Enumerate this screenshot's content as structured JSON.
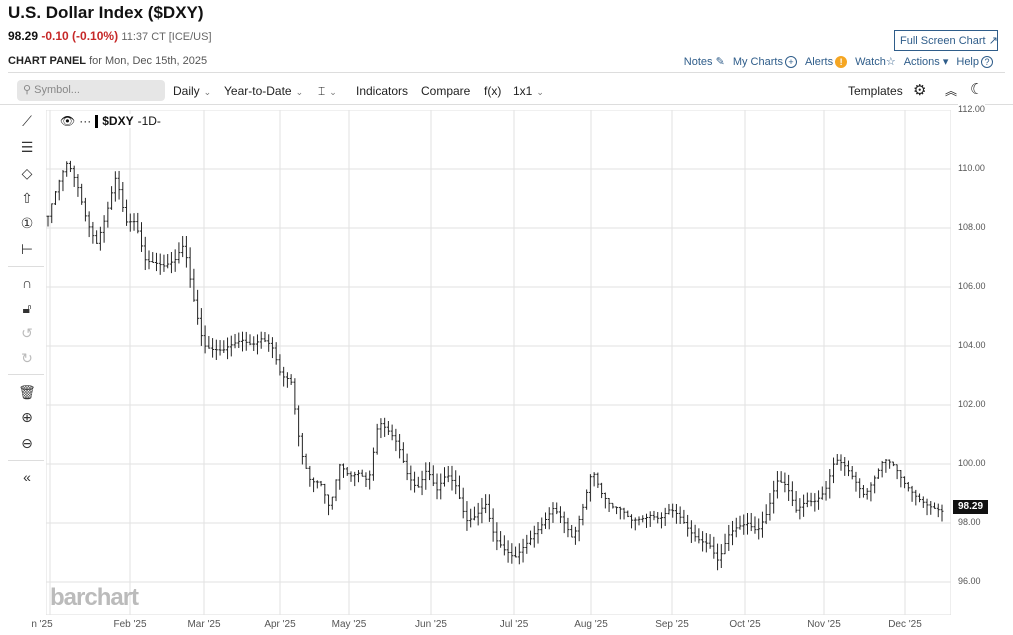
{
  "header": {
    "title": "U.S. Dollar Index ($DXY)",
    "last": "98.29",
    "change": "-0.10 (-0.10%)",
    "time": "11:37 CT [ICE/US]",
    "panel_label": "CHART PANEL",
    "panel_date": "for Mon, Dec 15th, 2025",
    "fullscreen": "Full Screen Chart ↗"
  },
  "links": {
    "notes": "Notes",
    "mycharts": "My Charts",
    "alerts": "Alerts",
    "watch": "Watch",
    "actions": "Actions",
    "help": "Help"
  },
  "toolbar": {
    "symbol_placeholder": "Symbol...",
    "interval": "Daily",
    "range": "Year-to-Date",
    "bartype": "⌶",
    "indicators": "Indicators",
    "compare": "Compare",
    "fx": "f(x)",
    "layout": "1x1",
    "templates": "Templates"
  },
  "legend": {
    "symbol": "$DXY",
    "period": "-1D-"
  },
  "watermark": "barchart",
  "chart_data": {
    "type": "ohlc",
    "symbol": "$DXY",
    "ylim": [
      95.5,
      112
    ],
    "yticks": [
      "112.00",
      "110.00",
      "108.00",
      "106.00",
      "104.00",
      "102.00",
      "100.00",
      "98.00",
      "96.00"
    ],
    "xticks": [
      "n '25",
      "Feb '25",
      "Mar '25",
      "Apr '25",
      "May '25",
      "Jun '25",
      "Jul '25",
      "Aug '25",
      "Sep '25",
      "Oct '25",
      "Nov '25",
      "Dec '25"
    ],
    "last_price": "98.29",
    "closes": [
      108.4,
      109.3,
      110.1,
      109.5,
      108.4,
      107.6,
      108.4,
      109.6,
      108.1,
      108.3,
      107.1,
      106.9,
      106.6,
      106.7,
      107.4,
      105.7,
      104.2,
      103.9,
      103.7,
      103.9,
      104.2,
      104.2,
      104.4,
      104.0,
      102.8,
      102.7,
      100.5,
      99.6,
      99.5,
      98.4,
      99.8,
      99.5,
      99.8,
      99.6,
      101.5,
      101.0,
      100.5,
      99.6,
      99.3,
      100.0,
      99.1,
      99.5,
      99.1,
      98.1,
      98.4,
      98.8,
      97.4,
      96.9,
      96.7,
      97.3,
      97.8,
      98.1,
      98.4,
      97.9,
      97.4,
      98.6,
      100.0,
      99.0,
      98.4,
      98.3,
      98.1,
      98.3,
      98.4,
      98.1,
      98.3,
      98.1,
      97.8,
      97.6,
      97.4,
      96.6,
      97.4,
      97.8,
      98.1,
      97.9,
      98.4,
      99.3,
      99.1,
      98.4,
      98.9,
      98.9,
      99.1,
      100.0,
      99.8,
      99.5,
      99.1,
      99.6,
      100.1,
      99.8,
      99.3,
      99.1,
      98.9,
      98.6,
      98.29
    ]
  }
}
